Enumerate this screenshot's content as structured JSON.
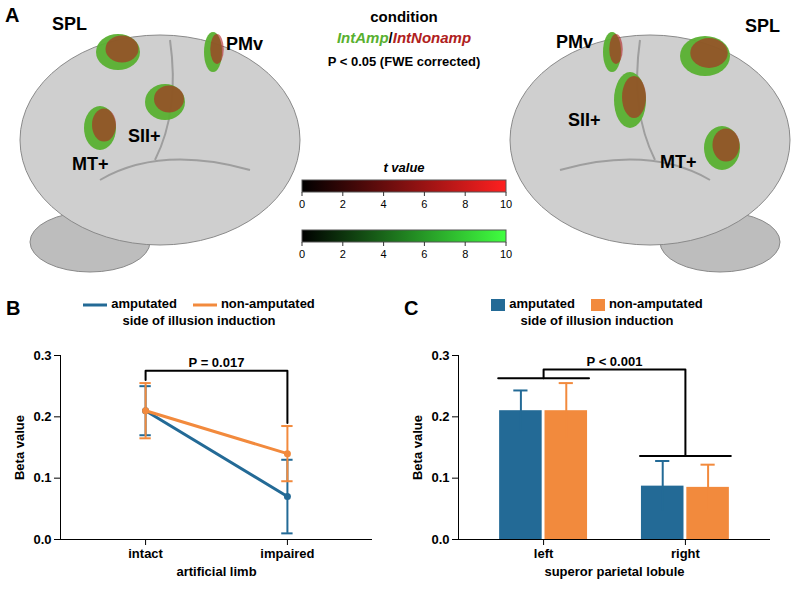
{
  "panel_a": {
    "letter": "A",
    "legend": {
      "title": "condition",
      "conditions": [
        {
          "name": "IntAmp",
          "color": "#58b030"
        },
        {
          "name": "IntNonamp",
          "color": "#b02020"
        }
      ],
      "separator": "/",
      "note": "P < 0.05 (FWE corrected)"
    },
    "colorbar": {
      "title": "t value",
      "range": [
        0,
        10
      ],
      "ticks": [
        0,
        2,
        4,
        6,
        8,
        10
      ],
      "scales": [
        {
          "condition": "IntNonamp",
          "colors": [
            "#000000",
            "#ff2020"
          ]
        },
        {
          "condition": "IntAmp",
          "colors": [
            "#000000",
            "#40ff40"
          ]
        }
      ]
    },
    "hemispheres": [
      {
        "regions": [
          "SPL",
          "PMv",
          "SII+",
          "MT+"
        ]
      },
      {
        "regions": [
          "SPL",
          "PMv",
          "SII+",
          "MT+"
        ]
      }
    ]
  },
  "chart_data": [
    {
      "letter": "B",
      "type": "line",
      "categories": [
        "intact",
        "impaired"
      ],
      "series": [
        {
          "name": "amputated",
          "color": "#236a96",
          "values": [
            0.21,
            0.07
          ],
          "errors": [
            0.04,
            0.06
          ]
        },
        {
          "name": "non-amputated",
          "color": "#f28a3d",
          "values": [
            0.21,
            0.14
          ],
          "errors": [
            0.045,
            0.045
          ]
        }
      ],
      "legend_title": "side of illusion induction",
      "legend": "top",
      "xlabel": "artificial limb",
      "ylabel": "Beta value",
      "ylim": [
        0,
        0.3
      ],
      "yticks": [
        {
          "value": 0,
          "label": "0.0"
        },
        {
          "value": 0.1,
          "label": "0.1"
        },
        {
          "value": 0.2,
          "label": "0.2"
        },
        {
          "value": 0.3,
          "label": "0.3"
        }
      ],
      "annotations": [
        {
          "text": "P = 0.017",
          "between": [
            "intact",
            "impaired"
          ]
        }
      ]
    },
    {
      "letter": "C",
      "type": "bar",
      "categories": [
        "left",
        "right"
      ],
      "series": [
        {
          "name": "amputated",
          "color": "#236a96",
          "values": [
            0.21,
            0.087
          ],
          "errors": [
            0.033,
            0.041
          ]
        },
        {
          "name": "non-amputated",
          "color": "#f28a3d",
          "values": [
            0.21,
            0.085
          ],
          "errors": [
            0.045,
            0.037
          ]
        }
      ],
      "legend_title": "side of illusion induction",
      "legend": "top",
      "xlabel": "superor parietal lobule",
      "ylabel": "Beta value",
      "ylim": [
        0,
        0.3
      ],
      "yticks": [
        {
          "value": 0,
          "label": "0.0"
        },
        {
          "value": 0.1,
          "label": "0.1"
        },
        {
          "value": 0.2,
          "label": "0.2"
        },
        {
          "value": 0.3,
          "label": "0.3"
        }
      ],
      "annotations": [
        {
          "text": "P < 0.001",
          "between": [
            "left",
            "right"
          ]
        }
      ]
    }
  ]
}
